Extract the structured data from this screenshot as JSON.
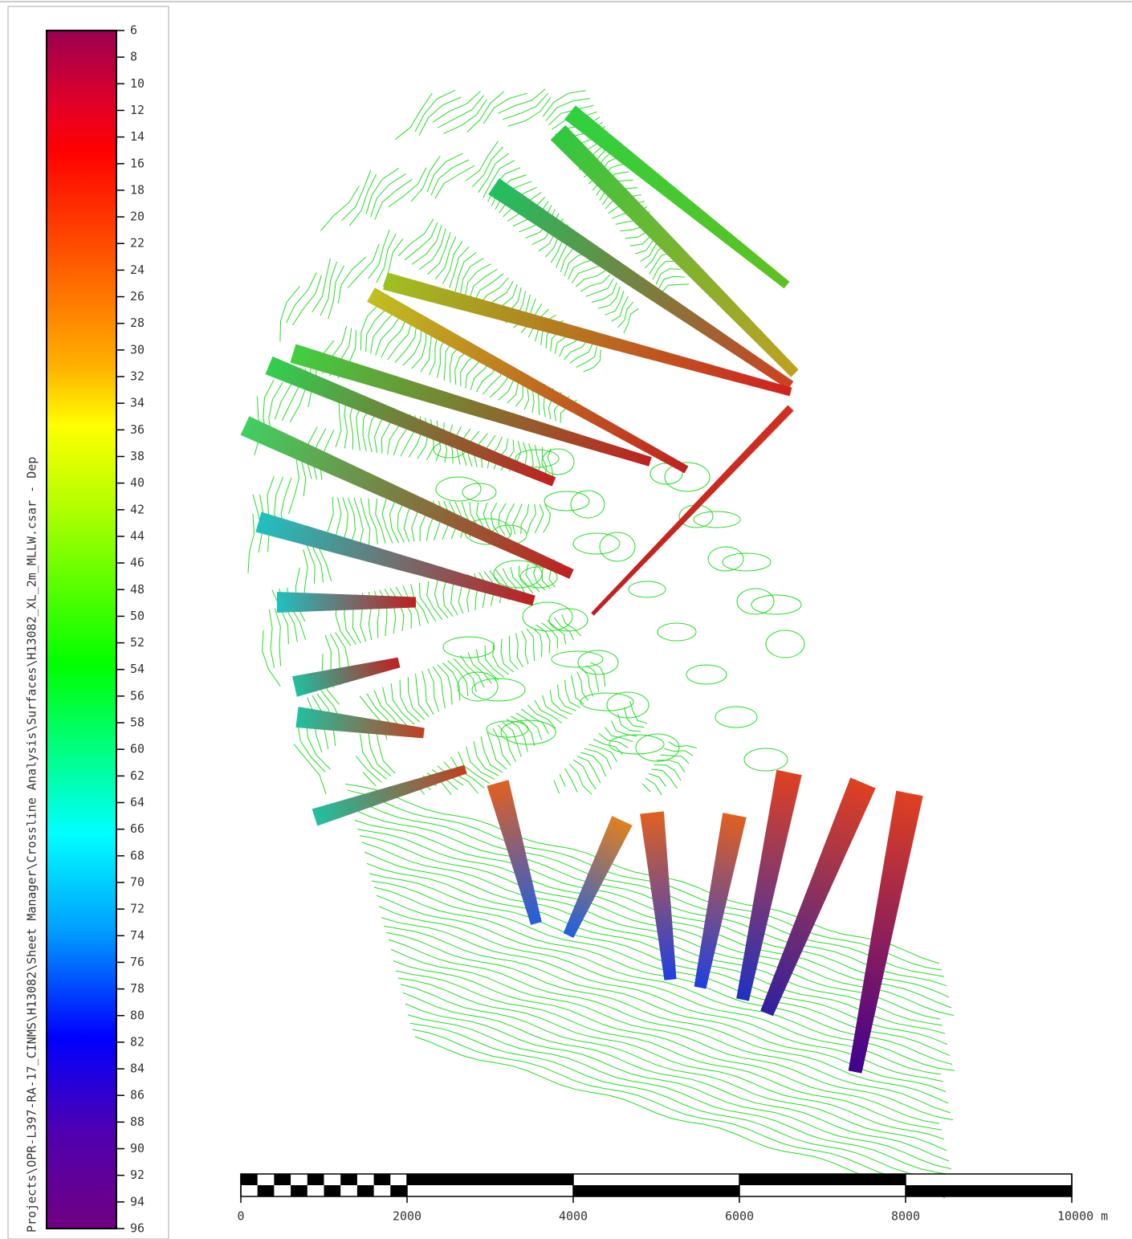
{
  "title": "Projects\\OPR-L397-RA-17_CINMS\\H13082\\Sheet Manager\\Crossline Analysis\\Surfaces\\H13082_XL_2m_MLLW.csar - Dep",
  "colorbar": {
    "ticks": [
      6,
      8,
      10,
      12,
      14,
      16,
      18,
      20,
      22,
      24,
      26,
      28,
      30,
      32,
      34,
      36,
      38,
      40,
      42,
      44,
      46,
      48,
      50,
      52,
      54,
      56,
      58,
      60,
      62,
      64,
      66,
      68,
      70,
      72,
      74,
      76,
      78,
      80,
      82,
      84,
      86,
      88,
      90,
      92,
      94,
      96
    ]
  },
  "scale_bar": {
    "ticks": [
      0,
      2000,
      4000,
      6000,
      8000,
      {
        "value": 10000,
        "label": "10000 m"
      }
    ]
  }
}
